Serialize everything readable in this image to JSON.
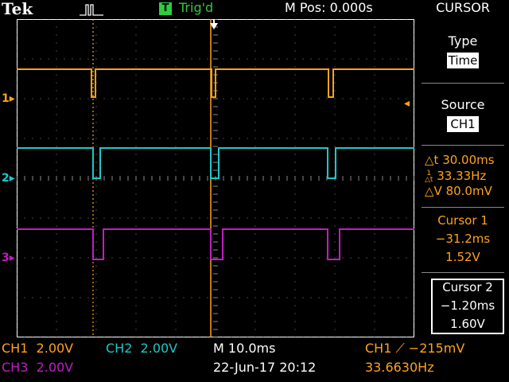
{
  "header": {
    "brand": "Tek",
    "acquisition_icon": "pulse-icon",
    "trigger_badge": "T",
    "trigger_status": "Trig'd",
    "m_pos": "M Pos: 0.000s"
  },
  "menu": {
    "title": "CURSOR",
    "type_label": "Type",
    "type_value": "Time",
    "source_label": "Source",
    "source_value": "CH1",
    "delta_t": "30.00ms",
    "inv_delta_t": "33.33Hz",
    "delta_v": "80.0mV",
    "cursor1_label": "Cursor 1",
    "cursor1_time": "−31.2ms",
    "cursor1_volt": "1.52V",
    "cursor2_label": "Cursor 2",
    "cursor2_time": "−1.20ms",
    "cursor2_volt": "1.60V"
  },
  "channels": {
    "ch1_marker": "1",
    "ch2_marker": "2",
    "ch3_marker": "3",
    "colors": {
      "ch1": "#ffa31a",
      "ch2": "#1ec8c8",
      "ch3": "#c01ec0"
    }
  },
  "footer": {
    "ch1_scale": "CH1  2.00V",
    "ch2_scale": "CH2  2.00V",
    "ch3_scale": "CH3  2.00V",
    "timebase": "M 10.0ms",
    "datetime": "22-Jun-17 20:12",
    "trigger_source": "CH1",
    "trigger_level": "−215mV",
    "frequency": "33.6630Hz"
  }
}
